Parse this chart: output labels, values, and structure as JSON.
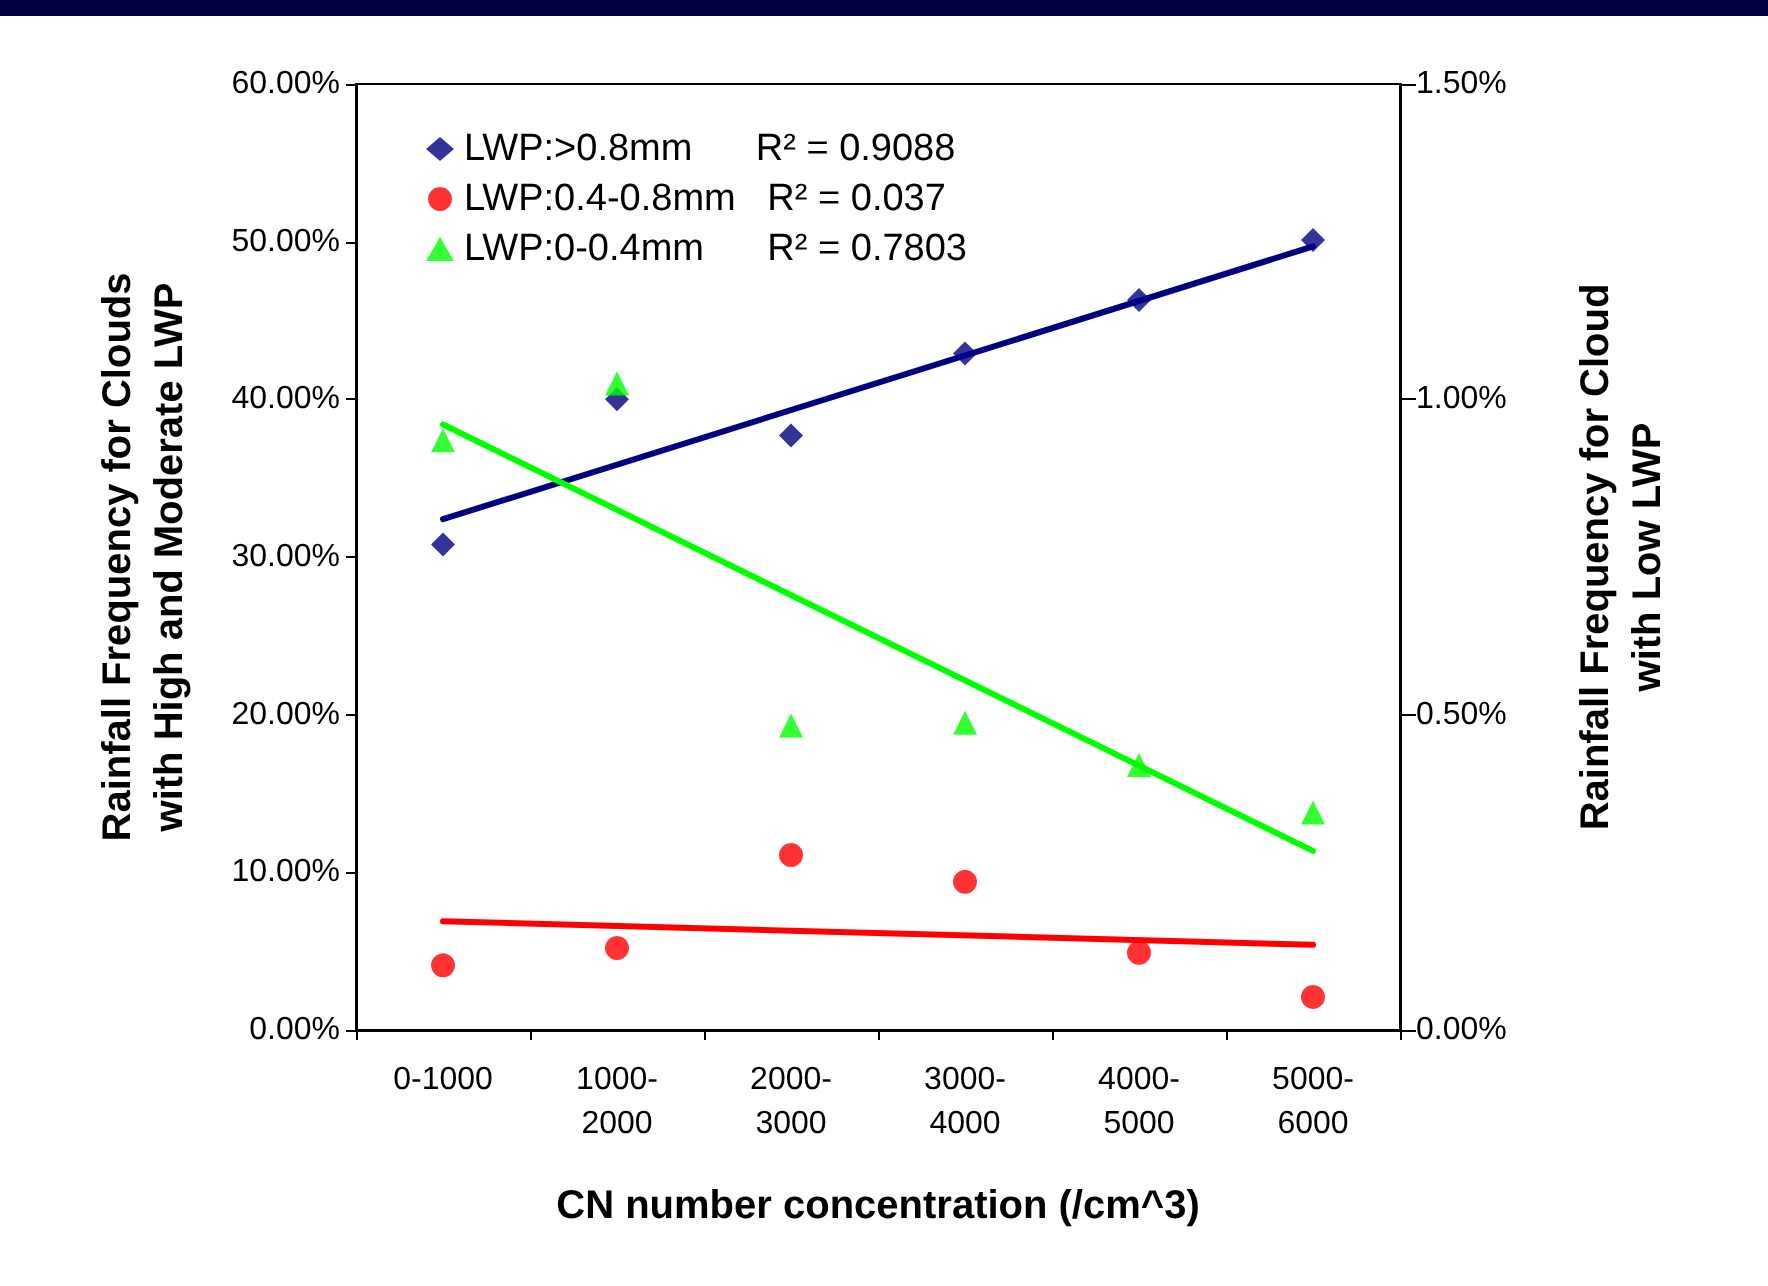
{
  "chart_data": {
    "type": "scatter",
    "xlabel": "CN number concentration (/cm^3)",
    "ylabel": "Rainfall Frequency for Clouds\nwith High and Moderate LWP",
    "y2label": "Rainfall Frequency for Cloud\nwith Low LWP",
    "categories": [
      "0-1000",
      "1000-\n2000",
      "2000-\n3000",
      "3000-\n4000",
      "4000-\n5000",
      "5000-\n6000"
    ],
    "series": [
      {
        "name": "LWP:>0.8mm      R² = 0.9088",
        "color": "#000080",
        "marker": "diamond",
        "values": [
          30.8,
          40.0,
          37.7,
          42.9,
          46.3,
          50.1
        ]
      },
      {
        "name": "LWP:0.4-0.8mm   R² = 0.037",
        "color": "#ff0000",
        "marker": "circle",
        "values": [
          4.1,
          5.2,
          11.1,
          9.4,
          4.9,
          2.1
        ]
      },
      {
        "name": "LWP:0-0.4mm      R² = 0.7803",
        "color": "#00ff00",
        "marker": "triangle",
        "axis": "y2",
        "values": [
          0.935,
          1.025,
          0.483,
          0.487,
          0.42,
          0.345
        ]
      },
      {
        "type": "line",
        "color": "#000080",
        "x": [
          "0-1000",
          "5000-\n6000"
        ],
        "values": [
          32.4,
          49.7
        ]
      },
      {
        "type": "line",
        "color": "#ff0000",
        "x": [
          "0-1000",
          "5000-\n6000"
        ],
        "values": [
          6.9,
          5.4
        ]
      },
      {
        "type": "line",
        "color": "#00ff00",
        "axis": "y2",
        "x": [
          "0-1000",
          "5000-\n6000"
        ],
        "values": [
          0.96,
          0.284
        ]
      }
    ],
    "ylim": [
      0,
      60
    ],
    "yticks": [
      {
        "value": 0,
        "label": "0.00%"
      },
      {
        "value": 10,
        "label": "10.00%"
      },
      {
        "value": 20,
        "label": "20.00%"
      },
      {
        "value": 30,
        "label": "30.00%"
      },
      {
        "value": 40,
        "label": "40.00%"
      },
      {
        "value": 50,
        "label": "50.00%"
      },
      {
        "value": 60,
        "label": "60.00%"
      }
    ],
    "y2lim": [
      0,
      1.5
    ],
    "y2ticks": [
      {
        "value": 0,
        "label": "0.00%"
      },
      {
        "value": 0.5,
        "label": "0.50%"
      },
      {
        "value": 1,
        "label": "1.00%"
      },
      {
        "value": 1.5,
        "label": "1.50%"
      }
    ],
    "legend": "top left",
    "line_style": "solid"
  }
}
